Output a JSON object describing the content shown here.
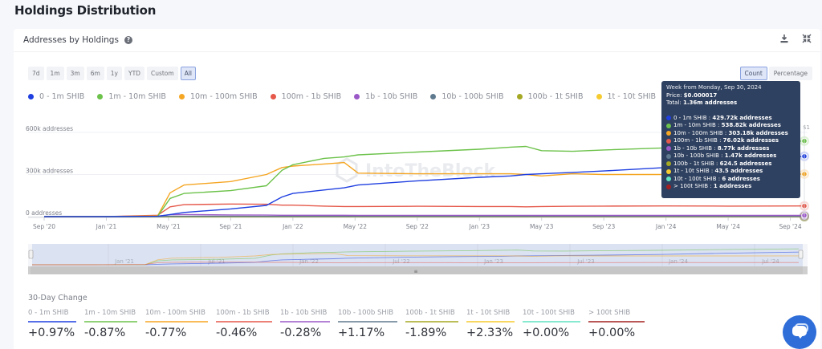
{
  "page": {
    "title": "Holdings Distribution"
  },
  "card": {
    "title": "Addresses by Holdings",
    "help_icon": "question-circle-icon",
    "download_icon": "download-icon",
    "fullscreen_icon": "collapse-arrows-icon"
  },
  "range_buttons": [
    {
      "label": "7d",
      "active": false
    },
    {
      "label": "1m",
      "active": false
    },
    {
      "label": "3m",
      "active": false
    },
    {
      "label": "6m",
      "active": false
    },
    {
      "label": "1y",
      "active": false
    },
    {
      "label": "YTD",
      "active": false
    },
    {
      "label": "Custom",
      "active": false
    },
    {
      "label": "All",
      "active": true
    }
  ],
  "mode_buttons": [
    {
      "label": "Count",
      "active": true
    },
    {
      "label": "Percentage",
      "active": false
    }
  ],
  "watermark": "IntoTheBlock",
  "tooltip": {
    "week": "Week from Monday, Sep 30, 2024",
    "price_label": "Price:",
    "price_value": "$0.000017",
    "total_label": "Total:",
    "total_value": "1.36m addresses",
    "rows": [
      {
        "label": "0 - 1m SHIB :",
        "value": "429.72k addresses",
        "color": "#1f3fe0"
      },
      {
        "label": "1m - 10m SHIB :",
        "value": "538.82k addresses",
        "color": "#6cc24a"
      },
      {
        "label": "10m - 100m SHIB :",
        "value": "303.18k addresses",
        "color": "#f5a623"
      },
      {
        "label": "100m - 1b SHIB :",
        "value": "76.02k addresses",
        "color": "#e5584a"
      },
      {
        "label": "1b - 10b SHIB :",
        "value": "8.77k addresses",
        "color": "#9b59c7"
      },
      {
        "label": "10b - 100b SHIB :",
        "value": "1.47k addresses",
        "color": "#5f7a8e"
      },
      {
        "label": "100b - 1t SHIB :",
        "value": "624.5 addresses",
        "color": "#a5a823"
      },
      {
        "label": "1t - 10t SHIB :",
        "value": "43.5 addresses",
        "color": "#f6cb2f"
      },
      {
        "label": "10t - 100t SHIB :",
        "value": "6 addresses",
        "color": "#5fe3c0"
      },
      {
        "label": "> 100t SHIB :",
        "value": "1 addresses",
        "color": "#a31f1f"
      }
    ]
  },
  "price_axis_label": "$1",
  "navigator": {
    "labels": [
      "Jan '21",
      "Jul '21",
      "Jan '22",
      "Jul '22",
      "Jan '23",
      "Jul '23",
      "Jan '24",
      "Jul '24"
    ]
  },
  "chart_data": {
    "type": "line",
    "title": "Addresses by Holdings",
    "xlabel": "",
    "ylabel": "addresses",
    "x_ticks": [
      "Sep '20",
      "Jan '21",
      "May '21",
      "Sep '21",
      "Jan '22",
      "May '22",
      "Sep '22",
      "Jan '23",
      "May '23",
      "Sep '23",
      "Jan '24",
      "May '24",
      "Sep '24"
    ],
    "y_ticks": [
      "0 addresses",
      "300k addresses",
      "600k addresses"
    ],
    "ylim": [
      0,
      600000
    ],
    "x_range": [
      "2020-09",
      "2024-09-30"
    ],
    "grid": true,
    "legend_position": "top-left",
    "x": [
      "Sep '20",
      "Jan '21",
      "Apr '21",
      "May '21",
      "Jun '21",
      "Sep '21",
      "Nov '21",
      "Dec '21",
      "Jan '22",
      "Mar '22",
      "Apr '22",
      "May '22",
      "Sep '22",
      "Jan '23",
      "Mar '23",
      "Apr '23",
      "May '23",
      "Jul '23",
      "Sep '23",
      "Jan '24",
      "May '24",
      "Sep '24"
    ],
    "series": [
      {
        "name": "0 - 1m SHIB",
        "color": "#1f3fe0",
        "values": [
          0,
          0,
          2000,
          15000,
          30000,
          55000,
          80000,
          140000,
          165000,
          190000,
          205000,
          225000,
          255000,
          280000,
          290000,
          300000,
          305000,
          315000,
          325000,
          350000,
          390000,
          429720
        ]
      },
      {
        "name": "1m - 10m SHIB",
        "color": "#6cc24a",
        "values": [
          0,
          0,
          2000,
          130000,
          165000,
          185000,
          220000,
          330000,
          370000,
          415000,
          425000,
          440000,
          460000,
          480000,
          495000,
          500000,
          470000,
          465000,
          475000,
          490000,
          515000,
          538820
        ]
      },
      {
        "name": "10m - 100m SHIB",
        "color": "#f5a623",
        "values": [
          0,
          0,
          5000,
          170000,
          225000,
          250000,
          300000,
          350000,
          360000,
          375000,
          385000,
          310000,
          305000,
          305000,
          305000,
          300000,
          290000,
          305000,
          300000,
          300000,
          300000,
          303180
        ]
      },
      {
        "name": "100m - 1b SHIB",
        "color": "#e5584a",
        "values": [
          0,
          0,
          10000,
          70000,
          85000,
          90000,
          88000,
          82000,
          82000,
          75000,
          72000,
          72000,
          74000,
          72000,
          72000,
          70000,
          72000,
          74000,
          75000,
          76000,
          75000,
          76020
        ]
      },
      {
        "name": "1b - 10b SHIB",
        "color": "#9b59c7",
        "values": [
          0,
          0,
          3000,
          14000,
          15000,
          12000,
          11000,
          10000,
          10000,
          9500,
          9500,
          9000,
          9000,
          9000,
          9000,
          9000,
          8800,
          8800,
          8800,
          8800,
          8800,
          8770
        ]
      },
      {
        "name": "10b - 100b SHIB",
        "color": "#5f7a8e",
        "values": [
          0,
          0,
          500,
          2500,
          2300,
          2000,
          1900,
          1800,
          1700,
          1650,
          1600,
          1600,
          1550,
          1550,
          1550,
          1500,
          1500,
          1500,
          1500,
          1500,
          1480,
          1470
        ]
      },
      {
        "name": "100b - 1t SHIB",
        "color": "#a5a823",
        "values": [
          0,
          0,
          100,
          700,
          680,
          660,
          650,
          640,
          640,
          635,
          630,
          630,
          630,
          630,
          628,
          627,
          626,
          625,
          625,
          625,
          625,
          624.5
        ]
      },
      {
        "name": "1t - 10t SHIB",
        "color": "#f6cb2f",
        "values": [
          0,
          0,
          10,
          50,
          48,
          47,
          46,
          45,
          45,
          45,
          44,
          44,
          44,
          44,
          44,
          44,
          44,
          44,
          44,
          44,
          43.5,
          43.5
        ]
      },
      {
        "name": "10t - 100t SHIB",
        "color": "#5fe3c0",
        "values": [
          0,
          0,
          2,
          6,
          6,
          6,
          6,
          6,
          6,
          6,
          6,
          6,
          6,
          6,
          6,
          6,
          6,
          6,
          6,
          6,
          6,
          6
        ]
      },
      {
        "name": "> 100t SHIB",
        "color": "#a31f1f",
        "values": [
          0,
          0,
          1,
          1,
          1,
          1,
          1,
          1,
          1,
          1,
          1,
          1,
          1,
          1,
          1,
          1,
          1,
          1,
          1,
          1,
          1,
          1
        ]
      }
    ]
  },
  "thirty_day_change": {
    "title": "30-Day Change",
    "items": [
      {
        "label": "0 - 1m SHIB",
        "value": "+0.97%",
        "color": "#1f3fe0"
      },
      {
        "label": "1m - 10m SHIB",
        "value": "-0.87%",
        "color": "#6cc24a"
      },
      {
        "label": "10m - 100m SHIB",
        "value": "-0.77%",
        "color": "#f5a623"
      },
      {
        "label": "100m - 1b SHIB",
        "value": "-0.46%",
        "color": "#e5584a"
      },
      {
        "label": "1b - 10b SHIB",
        "value": "-0.28%",
        "color": "#9b59c7"
      },
      {
        "label": "10b - 100b SHIB",
        "value": "+1.17%",
        "color": "#5f7a8e"
      },
      {
        "label": "100b - 1t SHIB",
        "value": "-1.89%",
        "color": "#a5a823"
      },
      {
        "label": "1t - 10t SHIB",
        "value": "+2.33%",
        "color": "#f6cb2f"
      },
      {
        "label": "10t - 100t SHIB",
        "value": "+0.00%",
        "color": "#5fe3c0"
      },
      {
        "label": "> 100t SHIB",
        "value": "+0.00%",
        "color": "#a31f1f"
      }
    ]
  },
  "chat_button": {
    "icon": "chat-bubble-icon"
  }
}
